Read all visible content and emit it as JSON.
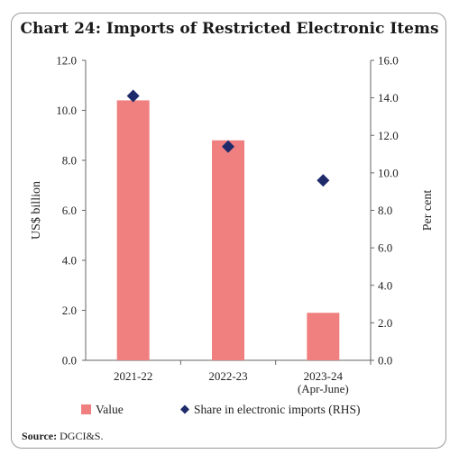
{
  "chart_data": {
    "type": "bar",
    "title": "Chart 24: Imports of Restricted Electronic Items",
    "categories": [
      "2021-22",
      "2022-23",
      "2023-24\n(Apr-June)"
    ],
    "series": [
      {
        "name": "Value",
        "type": "bar",
        "axis": "left",
        "color": "#f08080",
        "values": [
          10.4,
          8.8,
          1.9
        ]
      },
      {
        "name": "Share in electronic imports (RHS)",
        "type": "scatter",
        "axis": "right",
        "color": "#1f2a6b",
        "marker": "diamond",
        "values": [
          14.1,
          11.4,
          9.6
        ]
      }
    ],
    "ylabel": "US$ billion",
    "ylabel_right": "Per cent",
    "ylim": [
      0,
      12
    ],
    "ylim_right": [
      0,
      16
    ],
    "yticks": [
      "0.0",
      "2.0",
      "4.0",
      "6.0",
      "8.0",
      "10.0",
      "12.0"
    ],
    "yticks_right": [
      "0.0",
      "2.0",
      "4.0",
      "6.0",
      "8.0",
      "10.0",
      "12.0",
      "14.0",
      "16.0"
    ],
    "grid": false,
    "legend": "bottom"
  },
  "source": {
    "label": "Source:",
    "text": "DGCI&S."
  }
}
